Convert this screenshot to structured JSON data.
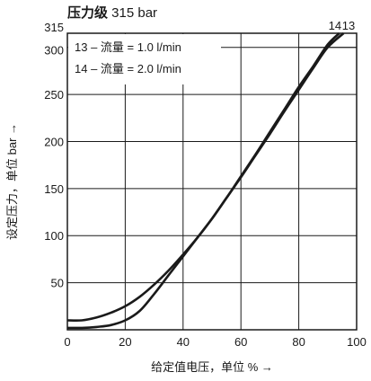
{
  "title": {
    "bold": "压力级",
    "rest": " 315 bar"
  },
  "chart_data": {
    "type": "line",
    "xlabel": "给定值电压，单位 % →",
    "ylabel": "设定压力，单位 bar →",
    "xlim": [
      0,
      100
    ],
    "ylim": [
      0,
      315
    ],
    "xticks": [
      0,
      20,
      40,
      60,
      80,
      100
    ],
    "yticks": [
      50,
      100,
      150,
      200,
      250,
      300,
      315
    ],
    "grid": true,
    "legend_position": "top-left",
    "legend": [
      "13 – 流量 = 1.0 l/min",
      "14 – 流量 = 2.0 l/min"
    ],
    "series": [
      {
        "name": "13",
        "x": [
          0,
          5,
          10,
          15,
          20,
          25,
          30,
          35,
          40,
          45,
          50,
          55,
          60,
          65,
          70,
          75,
          80,
          85,
          90,
          95.5
        ],
        "y": [
          2,
          2,
          3,
          5,
          10,
          20,
          38,
          58,
          78,
          98,
          118,
          140,
          162,
          185,
          208,
          232,
          255,
          278,
          300,
          315
        ]
      },
      {
        "name": "14",
        "x": [
          0,
          5,
          10,
          15,
          20,
          25,
          30,
          35,
          40,
          45,
          50,
          55,
          60,
          65,
          70,
          75,
          80,
          85,
          90,
          94
        ],
        "y": [
          10,
          10,
          13,
          18,
          25,
          35,
          48,
          63,
          80,
          98,
          118,
          140,
          163,
          186,
          210,
          234,
          258,
          280,
          303,
          315
        ]
      }
    ],
    "annotations": [
      "14",
      "13"
    ],
    "reference_line": {
      "y": 300,
      "x_from": 80,
      "x_to": 100
    }
  }
}
